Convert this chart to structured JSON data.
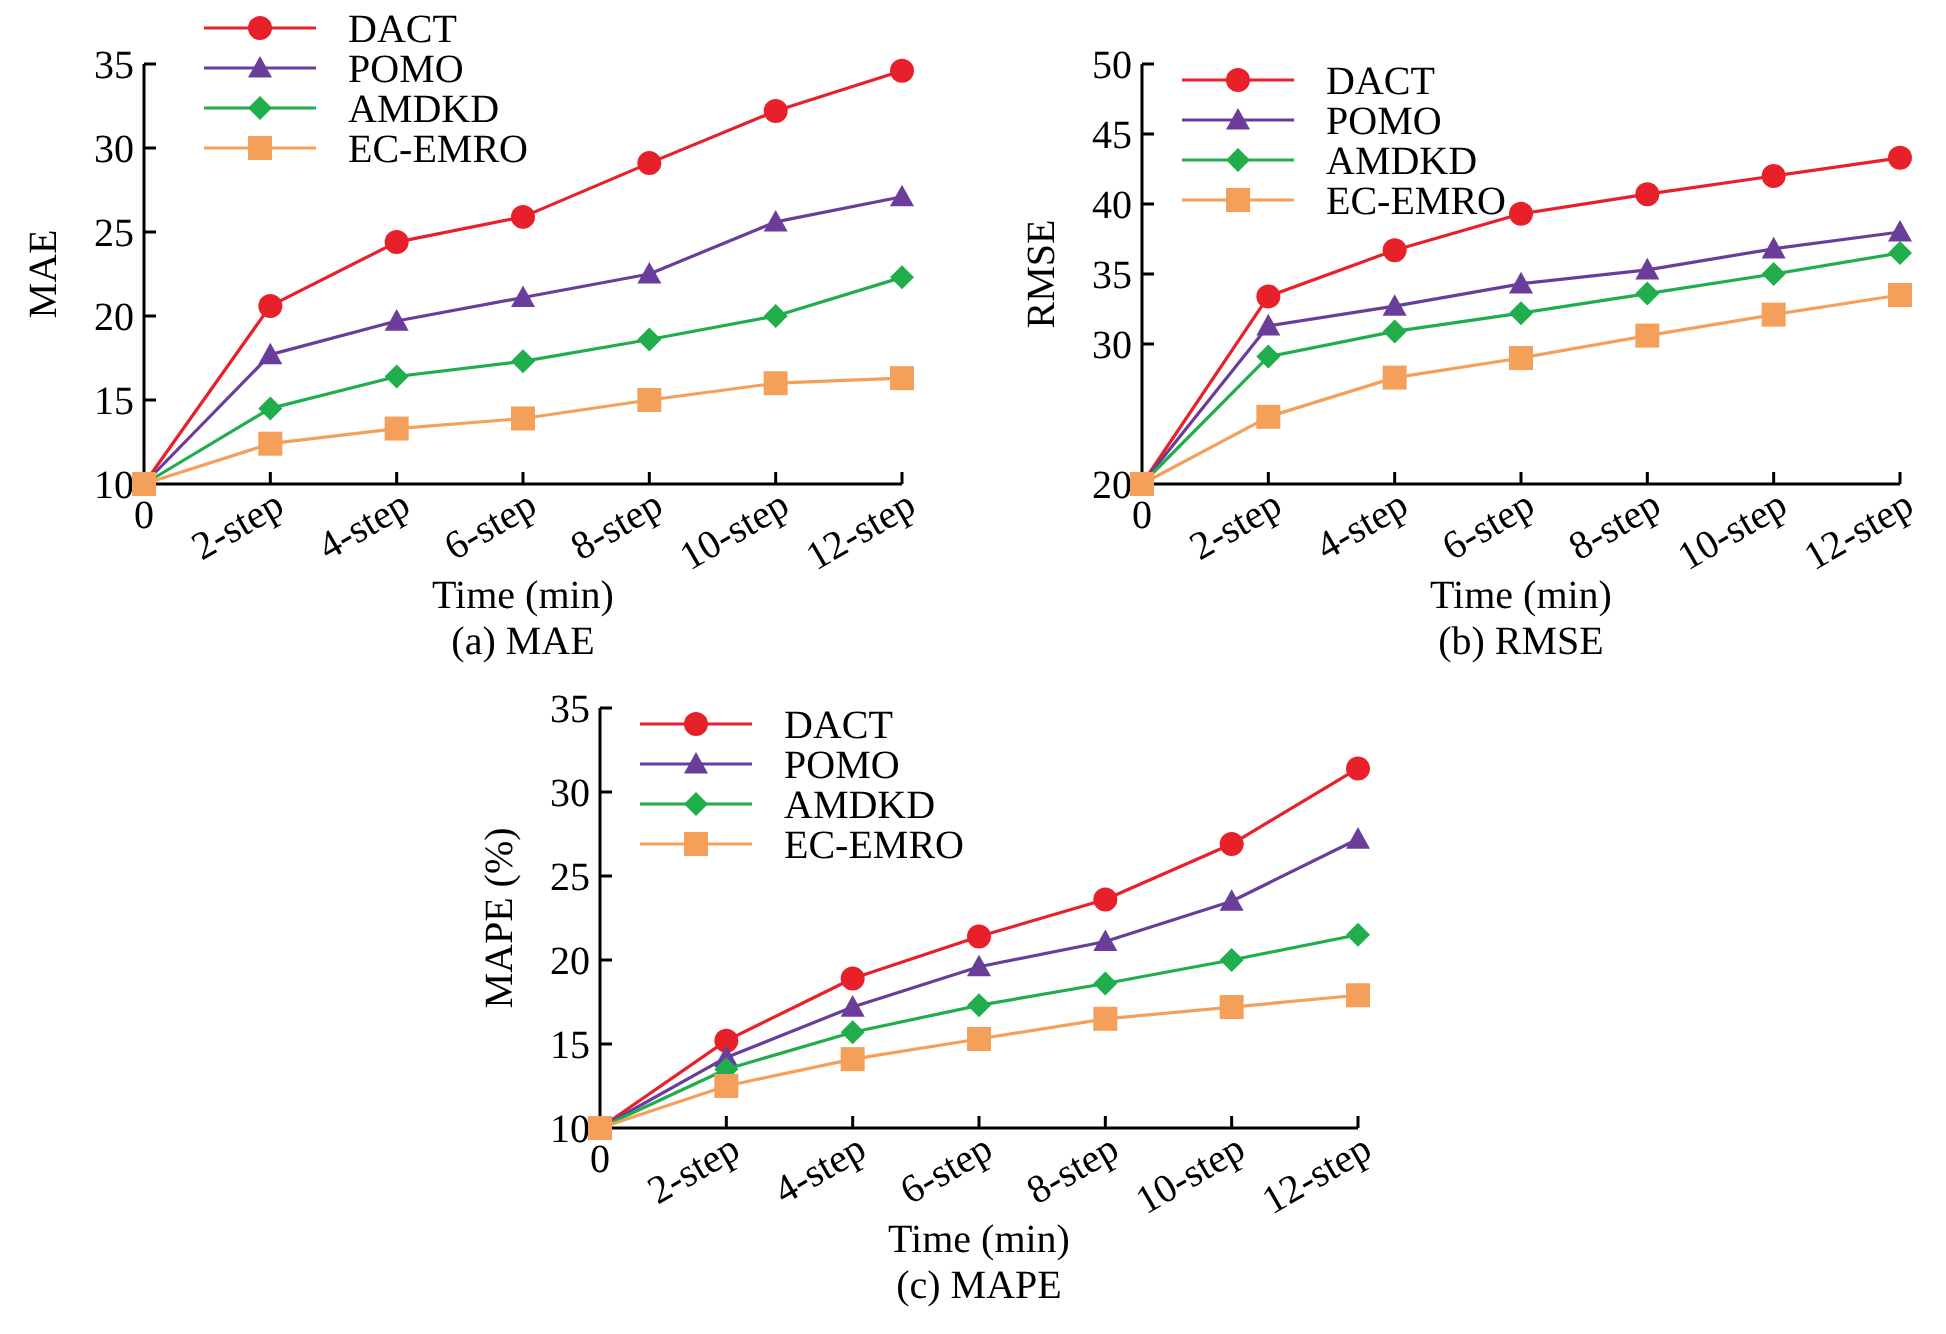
{
  "chart_data": [
    {
      "type": "line",
      "title": "(a) MAE",
      "xlabel": "Time (min)",
      "ylabel": "MAE",
      "categories": [
        "0",
        "2-step",
        "4-step",
        "6-step",
        "8-step",
        "10-step",
        "12-step"
      ],
      "ylim": [
        10,
        35
      ],
      "yticks": [
        10,
        15,
        20,
        25,
        30,
        35
      ],
      "legend": "top left",
      "grid": false,
      "series": [
        {
          "name": "DACT",
          "color": "#e8202a",
          "marker": "circle",
          "values": [
            10,
            20.6,
            24.4,
            25.9,
            29.1,
            32.2,
            34.6
          ]
        },
        {
          "name": "POMO",
          "color": "#6a3d9a",
          "marker": "triangle",
          "values": [
            10,
            17.7,
            19.7,
            21.1,
            22.5,
            25.6,
            27.1
          ]
        },
        {
          "name": "AMDKD",
          "color": "#1fae4b",
          "marker": "diamond",
          "values": [
            10,
            14.5,
            16.4,
            17.3,
            18.6,
            20.0,
            22.3
          ]
        },
        {
          "name": "EC-EMRO",
          "color": "#f5a05a",
          "marker": "square",
          "values": [
            10,
            12.4,
            13.3,
            13.9,
            15.0,
            16.0,
            16.3
          ]
        }
      ]
    },
    {
      "type": "line",
      "title": "(b) RMSE",
      "xlabel": "Time (min)",
      "ylabel": "RMSE",
      "categories": [
        "0",
        "2-step",
        "4-step",
        "6-step",
        "8-step",
        "10-step",
        "12-step"
      ],
      "ylim": [
        20,
        50
      ],
      "yticks": [
        20,
        30,
        35,
        40,
        45,
        50
      ],
      "legend": "top left",
      "grid": false,
      "series": [
        {
          "name": "DACT",
          "color": "#e8202a",
          "marker": "circle",
          "values": [
            20,
            33.4,
            36.7,
            39.3,
            40.7,
            42.0,
            43.3
          ]
        },
        {
          "name": "POMO",
          "color": "#6a3d9a",
          "marker": "triangle",
          "values": [
            20,
            31.3,
            32.7,
            34.3,
            35.3,
            36.8,
            38.0
          ]
        },
        {
          "name": "AMDKD",
          "color": "#1fae4b",
          "marker": "diamond",
          "values": [
            20,
            29.1,
            30.9,
            32.2,
            33.6,
            35.0,
            36.5
          ]
        },
        {
          "name": "EC-EMRO",
          "color": "#f5a05a",
          "marker": "square",
          "values": [
            20,
            24.8,
            27.6,
            29.0,
            30.6,
            32.1,
            33.5
          ]
        }
      ]
    },
    {
      "type": "line",
      "title": "(c) MAPE",
      "xlabel": "Time (min)",
      "ylabel": "MAPE (%)",
      "categories": [
        "0",
        "2-step",
        "4-step",
        "6-step",
        "8-step",
        "10-step",
        "12-step"
      ],
      "ylim": [
        10,
        35
      ],
      "yticks": [
        10,
        15,
        20,
        25,
        30,
        35
      ],
      "legend": "top left",
      "grid": false,
      "series": [
        {
          "name": "DACT",
          "color": "#e8202a",
          "marker": "circle",
          "values": [
            10,
            15.2,
            18.9,
            21.4,
            23.6,
            26.9,
            31.4
          ]
        },
        {
          "name": "POMO",
          "color": "#6a3d9a",
          "marker": "triangle",
          "values": [
            10,
            14.2,
            17.2,
            19.6,
            21.1,
            23.5,
            27.2
          ]
        },
        {
          "name": "AMDKD",
          "color": "#1fae4b",
          "marker": "diamond",
          "values": [
            10,
            13.5,
            15.7,
            17.3,
            18.6,
            20.0,
            21.5
          ]
        },
        {
          "name": "EC-EMRO",
          "color": "#f5a05a",
          "marker": "square",
          "values": [
            10,
            12.5,
            14.1,
            15.3,
            16.5,
            17.2,
            17.9
          ]
        }
      ]
    }
  ]
}
